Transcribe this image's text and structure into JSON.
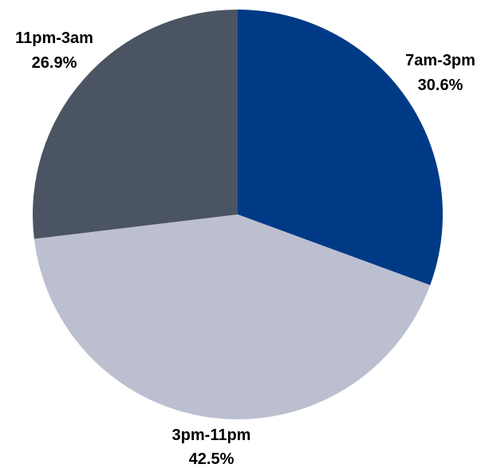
{
  "chart_data": {
    "type": "pie",
    "title": "",
    "start": "12 o'clock",
    "direction": "clockwise",
    "legend": "none",
    "slices": [
      {
        "label": "7am-3pm",
        "value": 30.6,
        "display": "30.6%",
        "color": "#003a87"
      },
      {
        "label": "3pm-11pm",
        "value": 42.5,
        "display": "42.5%",
        "color": "#bcbfcf"
      },
      {
        "label": "11pm-3am",
        "value": 26.9,
        "display": "26.9%",
        "color": "#4b5462"
      }
    ]
  }
}
